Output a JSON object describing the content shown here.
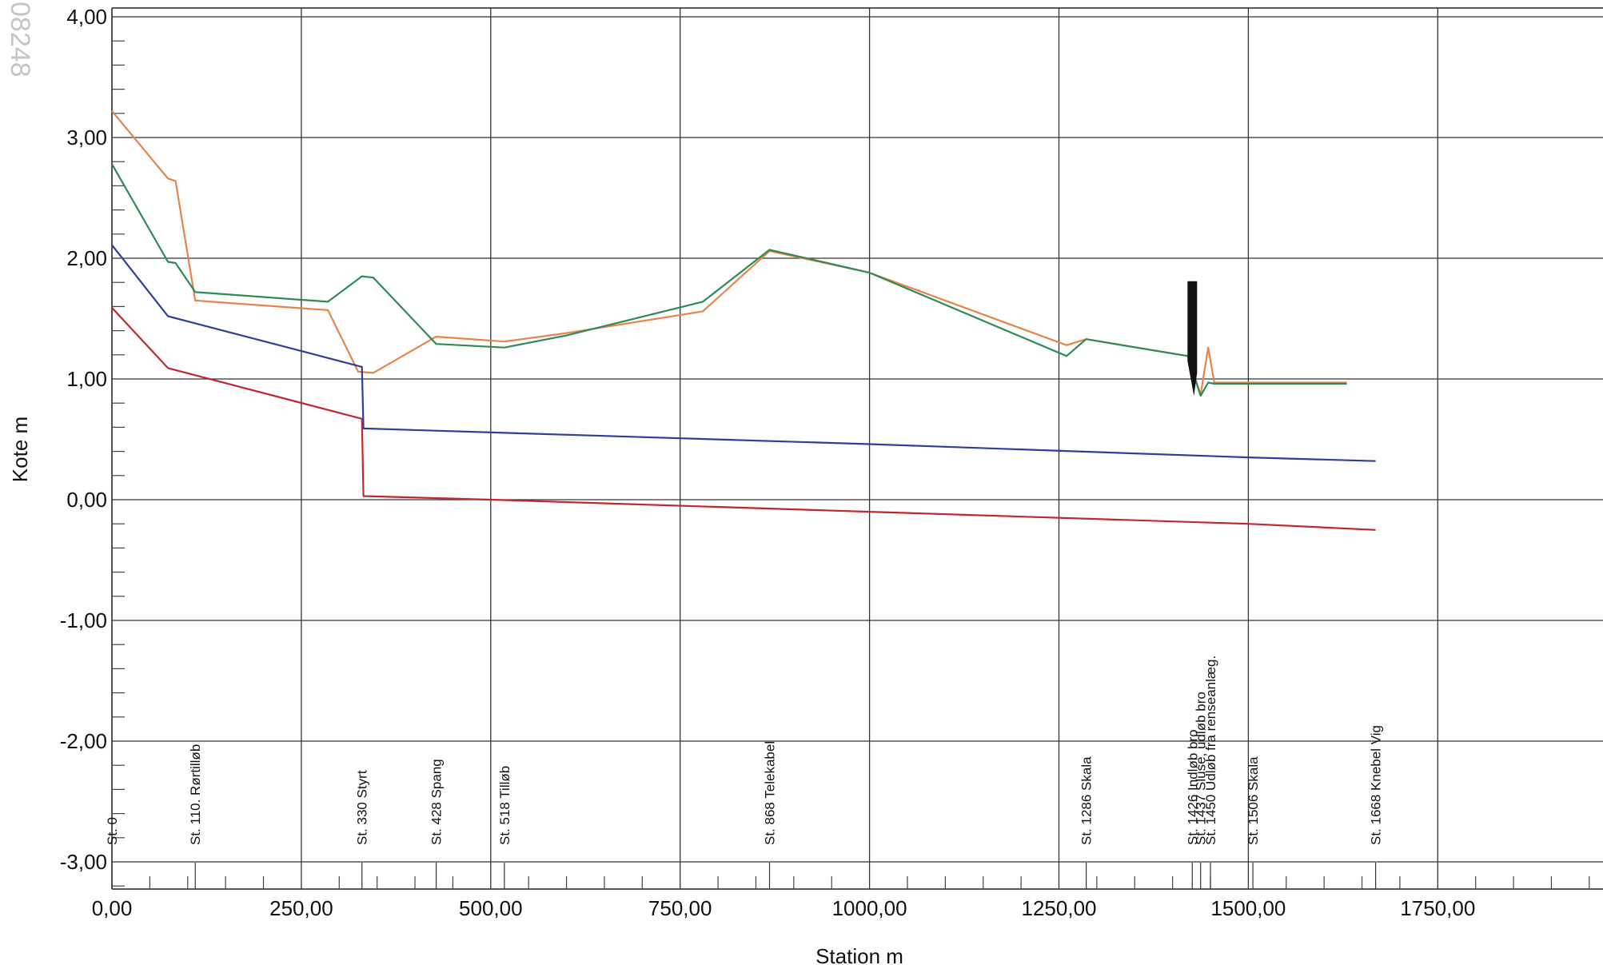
{
  "watermark": "08248",
  "chart_data": {
    "type": "line",
    "title": "",
    "xlabel": "Station m",
    "ylabel": "Kote m",
    "xlim": [
      0,
      2000
    ],
    "ylim": [
      -3.2,
      4.05
    ],
    "grid": true,
    "x_ticks": [
      0,
      250,
      500,
      750,
      1000,
      1250,
      1500,
      1750
    ],
    "x_tick_labels": [
      "0,00",
      "250,00",
      "500,00",
      "750,00",
      "1000,00",
      "1250,00",
      "1500,00",
      "1750,00"
    ],
    "y_ticks": [
      4,
      3,
      2,
      1,
      0,
      -1,
      -2,
      -3
    ],
    "y_tick_labels": [
      "4,00",
      "3,00",
      "2,00",
      "1,00",
      "0,00",
      "-1,00",
      "-2,00",
      "-3,00"
    ],
    "colors": {
      "orange": "#e8844a",
      "green": "#2e8b57",
      "blue": "#2e3f9a",
      "red": "#c0282d",
      "structure": "#111111"
    },
    "series": [
      {
        "color": "orange",
        "points": [
          [
            0,
            3.22
          ],
          [
            74,
            2.66
          ],
          [
            84,
            2.64
          ],
          [
            110,
            1.65
          ],
          [
            285,
            1.57
          ],
          [
            325,
            1.06
          ],
          [
            345,
            1.05
          ],
          [
            428,
            1.35
          ],
          [
            518,
            1.31
          ],
          [
            600,
            1.38
          ],
          [
            780,
            1.56
          ],
          [
            868,
            2.06
          ],
          [
            1000,
            1.88
          ],
          [
            1260,
            1.28
          ],
          [
            1286,
            1.33
          ],
          [
            1420,
            1.19
          ],
          [
            1437,
            0.87
          ],
          [
            1447,
            1.26
          ],
          [
            1455,
            0.97
          ],
          [
            1630,
            0.97
          ]
        ]
      },
      {
        "color": "green",
        "points": [
          [
            0,
            2.78
          ],
          [
            74,
            1.97
          ],
          [
            84,
            1.96
          ],
          [
            110,
            1.72
          ],
          [
            285,
            1.64
          ],
          [
            330,
            1.85
          ],
          [
            345,
            1.84
          ],
          [
            428,
            1.29
          ],
          [
            518,
            1.26
          ],
          [
            600,
            1.36
          ],
          [
            780,
            1.64
          ],
          [
            868,
            2.07
          ],
          [
            1000,
            1.88
          ],
          [
            1260,
            1.19
          ],
          [
            1286,
            1.33
          ],
          [
            1420,
            1.19
          ],
          [
            1437,
            0.86
          ],
          [
            1447,
            0.97
          ],
          [
            1455,
            0.96
          ],
          [
            1630,
            0.96
          ]
        ]
      },
      {
        "color": "blue",
        "points": [
          [
            0,
            2.11
          ],
          [
            74,
            1.52
          ],
          [
            330,
            1.1
          ],
          [
            332,
            0.59
          ],
          [
            1000,
            0.46
          ],
          [
            1500,
            0.35
          ],
          [
            1668,
            0.32
          ]
        ]
      },
      {
        "color": "red",
        "points": [
          [
            0,
            1.59
          ],
          [
            74,
            1.09
          ],
          [
            330,
            0.67
          ],
          [
            332,
            0.03
          ],
          [
            500,
            0.0
          ],
          [
            1000,
            -0.1
          ],
          [
            1500,
            -0.2
          ],
          [
            1668,
            -0.25
          ]
        ]
      }
    ],
    "structure": {
      "x": 1426,
      "top": 1.81,
      "bottom": 0.86
    },
    "markers": [
      {
        "station": 0,
        "label": "St. 0"
      },
      {
        "station": 110,
        "label": "St. 110. Rørtilløb"
      },
      {
        "station": 330,
        "label": "St. 330 Styrt"
      },
      {
        "station": 428,
        "label": "St. 428 Spang"
      },
      {
        "station": 518,
        "label": "St. 518 Tilløb"
      },
      {
        "station": 868,
        "label": "St. 868 Telekabel"
      },
      {
        "station": 1286,
        "label": "St. 1286 Skala"
      },
      {
        "station": 1426,
        "label": "St. 1426 Indløb bro"
      },
      {
        "station": 1437,
        "label": "St. 1437 Sluse, udløb bro"
      },
      {
        "station": 1450,
        "label": "St. 1450 Udløb fra renseanlæg."
      },
      {
        "station": 1506,
        "label": "St. 1506 Skala"
      },
      {
        "station": 1668,
        "label": "St. 1668 Knebel Vig"
      }
    ]
  }
}
